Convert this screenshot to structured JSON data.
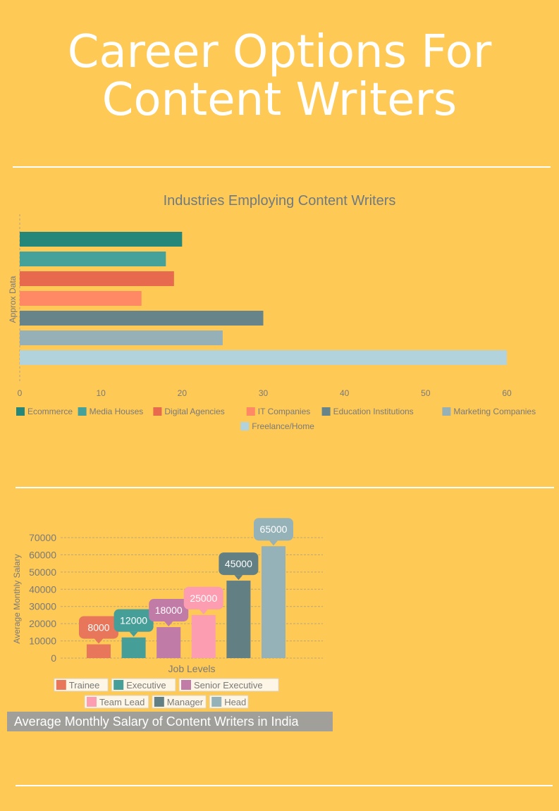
{
  "page": {
    "title_line1": "Career Options For",
    "title_line2": "Content Writers",
    "salary_caption": "Average Monthly Salary of Content Writers in India"
  },
  "chart_data": [
    {
      "type": "bar",
      "orientation": "horizontal",
      "title": "Industries Employing Content Writers",
      "ylabel": "Approx Data",
      "xlim": [
        0,
        60
      ],
      "xticks": [
        0,
        10,
        20,
        30,
        40,
        50,
        60
      ],
      "grid": false,
      "legend_position": "bottom",
      "series": [
        {
          "name": "Ecommerce",
          "value": 20,
          "color": "#25867a"
        },
        {
          "name": "Media Houses",
          "value": 18,
          "color": "#45a29a"
        },
        {
          "name": "Digital Agencies",
          "value": 19,
          "color": "#e7694e"
        },
        {
          "name": "IT Companies",
          "value": 15,
          "color": "#fe8964"
        },
        {
          "name": "Education Institutions",
          "value": 30,
          "color": "#66848a"
        },
        {
          "name": "Marketing Companies",
          "value": 25,
          "color": "#95b1b7"
        },
        {
          "name": "Freelance/Home",
          "value": 60,
          "color": "#b2d3dc"
        }
      ]
    },
    {
      "type": "bar",
      "xlabel": "Job Levels",
      "ylabel": "Average Monthly Salary",
      "ylim": [
        0,
        70000
      ],
      "yticks": [
        0,
        10000,
        20000,
        30000,
        40000,
        50000,
        60000,
        70000
      ],
      "grid": true,
      "legend_position": "bottom",
      "series": [
        {
          "name": "Trainee",
          "value": 8000,
          "label": "8000",
          "color": "#e8765a"
        },
        {
          "name": "Executive",
          "value": 12000,
          "label": "12000",
          "color": "#459f98"
        },
        {
          "name": "Senior Executive",
          "value": 18000,
          "label": "18000",
          "color": "#c17ba7"
        },
        {
          "name": "Team Lead",
          "value": 25000,
          "label": "25000",
          "color": "#fc9db1"
        },
        {
          "name": "Manager",
          "value": 45000,
          "label": "45000",
          "color": "#627f84"
        },
        {
          "name": "Head",
          "value": 65000,
          "label": "65000",
          "color": "#94b2b8"
        }
      ]
    }
  ]
}
